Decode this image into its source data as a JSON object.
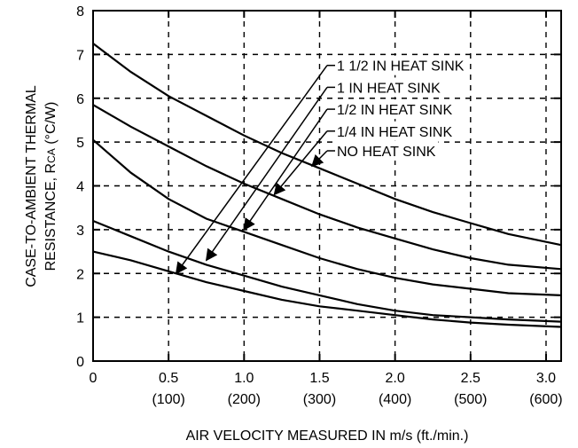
{
  "chart_data": {
    "type": "line",
    "xlabel": "AIR VELOCITY MEASURED IN m/s (ft./min.)",
    "ylabel_line1": "CASE-TO-AMBIENT THERMAL",
    "ylabel_line2_prefix": "RESISTANCE, R",
    "ylabel_line2_sub": "CA",
    "ylabel_line2_suffix": " (°C/W)",
    "xlim": [
      0,
      3.1
    ],
    "ylim": [
      0,
      8
    ],
    "grid": true,
    "x_ticks": [
      {
        "value": 0,
        "label": "0",
        "sublabel": ""
      },
      {
        "value": 0.5,
        "label": "0.5",
        "sublabel": "(100)"
      },
      {
        "value": 1.0,
        "label": "1.0",
        "sublabel": "(200)"
      },
      {
        "value": 1.5,
        "label": "1.5",
        "sublabel": "(300)"
      },
      {
        "value": 2.0,
        "label": "2.0",
        "sublabel": "(400)"
      },
      {
        "value": 2.5,
        "label": "2.5",
        "sublabel": "(500)"
      },
      {
        "value": 3.0,
        "label": "3.0",
        "sublabel": "(600)"
      }
    ],
    "y_ticks": [
      "0",
      "1",
      "2",
      "3",
      "4",
      "5",
      "6",
      "7",
      "8"
    ],
    "series": [
      {
        "name": "NO HEAT SINK",
        "x": [
          0,
          0.25,
          0.5,
          0.75,
          1.0,
          1.25,
          1.5,
          1.75,
          2.0,
          2.25,
          2.5,
          2.75,
          3.1
        ],
        "y": [
          7.25,
          6.6,
          6.05,
          5.6,
          5.15,
          4.75,
          4.4,
          4.05,
          3.7,
          3.4,
          3.15,
          2.9,
          2.65
        ],
        "pointer": {
          "label_x": 1.55,
          "label_y": 4.8,
          "target_x": 1.45,
          "target_y": 4.45
        }
      },
      {
        "name": "1/4 IN HEAT SINK",
        "x": [
          0,
          0.25,
          0.5,
          0.75,
          1.0,
          1.25,
          1.5,
          1.75,
          2.0,
          2.25,
          2.5,
          2.75,
          3.1
        ],
        "y": [
          5.85,
          5.35,
          4.9,
          4.45,
          4.05,
          3.7,
          3.35,
          3.05,
          2.8,
          2.55,
          2.35,
          2.2,
          2.1
        ],
        "pointer": {
          "label_x": 1.55,
          "label_y": 5.25,
          "target_x": 1.2,
          "target_y": 3.8
        }
      },
      {
        "name": "1/2 IN HEAT SINK",
        "x": [
          0,
          0.25,
          0.5,
          0.75,
          1.0,
          1.25,
          1.5,
          1.75,
          2.0,
          2.25,
          2.5,
          2.75,
          3.1
        ],
        "y": [
          5.05,
          4.3,
          3.7,
          3.25,
          2.95,
          2.65,
          2.35,
          2.1,
          1.9,
          1.75,
          1.65,
          1.55,
          1.5
        ],
        "pointer": {
          "label_x": 1.55,
          "label_y": 5.75,
          "target_x": 1.0,
          "target_y": 3.0
        }
      },
      {
        "name": "1 IN HEAT SINK",
        "x": [
          0,
          0.25,
          0.5,
          0.75,
          1.0,
          1.25,
          1.5,
          1.75,
          2.0,
          2.25,
          2.5,
          2.75,
          3.1
        ],
        "y": [
          3.2,
          2.85,
          2.5,
          2.2,
          1.95,
          1.7,
          1.5,
          1.3,
          1.15,
          1.05,
          1.0,
          0.95,
          0.9
        ],
        "pointer": {
          "label_x": 1.55,
          "label_y": 6.25,
          "target_x": 0.75,
          "target_y": 2.3
        }
      },
      {
        "name": "1 1/2 IN HEAT SINK",
        "x": [
          0,
          0.25,
          0.5,
          0.75,
          1.0,
          1.25,
          1.5,
          1.75,
          2.0,
          2.25,
          2.5,
          2.75,
          3.1
        ],
        "y": [
          2.5,
          2.3,
          2.05,
          1.8,
          1.6,
          1.4,
          1.25,
          1.15,
          1.05,
          0.95,
          0.88,
          0.83,
          0.78
        ],
        "pointer": {
          "label_x": 1.55,
          "label_y": 6.75,
          "target_x": 0.55,
          "target_y": 2.0
        }
      }
    ]
  }
}
